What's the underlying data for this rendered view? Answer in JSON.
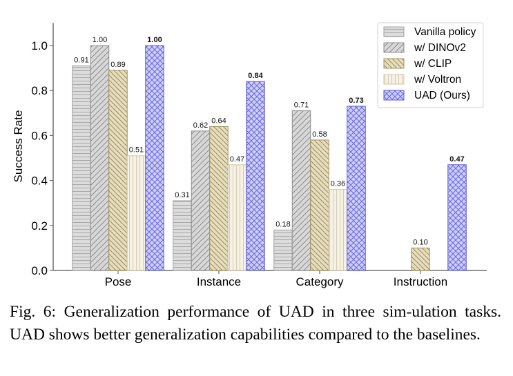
{
  "chart_data": {
    "type": "bar",
    "title": "",
    "xlabel": "",
    "ylabel": "Success Rate",
    "ylim": [
      0,
      1.1
    ],
    "yticks": [
      "0.0",
      "0.2",
      "0.4",
      "0.6",
      "0.8",
      "1.0"
    ],
    "grid": false,
    "legend_position": "top-right",
    "categories": [
      "Pose",
      "Instance",
      "Category",
      "Instruction"
    ],
    "series": [
      {
        "name": "Vanilla policy",
        "values": [
          0.91,
          0.31,
          0.18,
          null
        ],
        "labels": [
          "0.91",
          "0.31",
          "0.18",
          ""
        ],
        "color": "#d9d9d9",
        "edge": "#a0a0a0",
        "hatch": "horizontal",
        "bold_labels": false
      },
      {
        "name": "w/ DINOv2",
        "values": [
          1.0,
          0.62,
          0.71,
          null
        ],
        "labels": [
          "1.00",
          "0.62",
          "0.71",
          ""
        ],
        "color": "#d6d6d6",
        "edge": "#8c8c8c",
        "hatch": "forward-diagonal",
        "bold_labels": false
      },
      {
        "name": "w/ CLIP",
        "values": [
          0.89,
          0.64,
          0.58,
          0.1
        ],
        "labels": [
          "0.89",
          "0.64",
          "0.58",
          "0.10"
        ],
        "color": "#e4dcbc",
        "edge": "#a0905c",
        "hatch": "back-diagonal",
        "bold_labels": false
      },
      {
        "name": "w/ Voltron",
        "values": [
          0.51,
          0.47,
          0.36,
          null
        ],
        "labels": [
          "0.51",
          "0.47",
          "0.36",
          ""
        ],
        "color": "#f4f0e2",
        "edge": "#d0c8a8",
        "hatch": "vertical",
        "bold_labels": false
      },
      {
        "name": "UAD (Ours)",
        "values": [
          1.0,
          0.84,
          0.73,
          0.47
        ],
        "labels": [
          "1.00",
          "0.84",
          "0.73",
          "0.47"
        ],
        "color": "#c8c8f4",
        "edge": "#5a5ae0",
        "hatch": "cross-diagonal",
        "bold_labels": true
      }
    ]
  },
  "caption": "Fig. 6: Generalization performance of UAD in three sim-­ulation tasks. UAD shows better generalization capabilities compared to the baselines."
}
